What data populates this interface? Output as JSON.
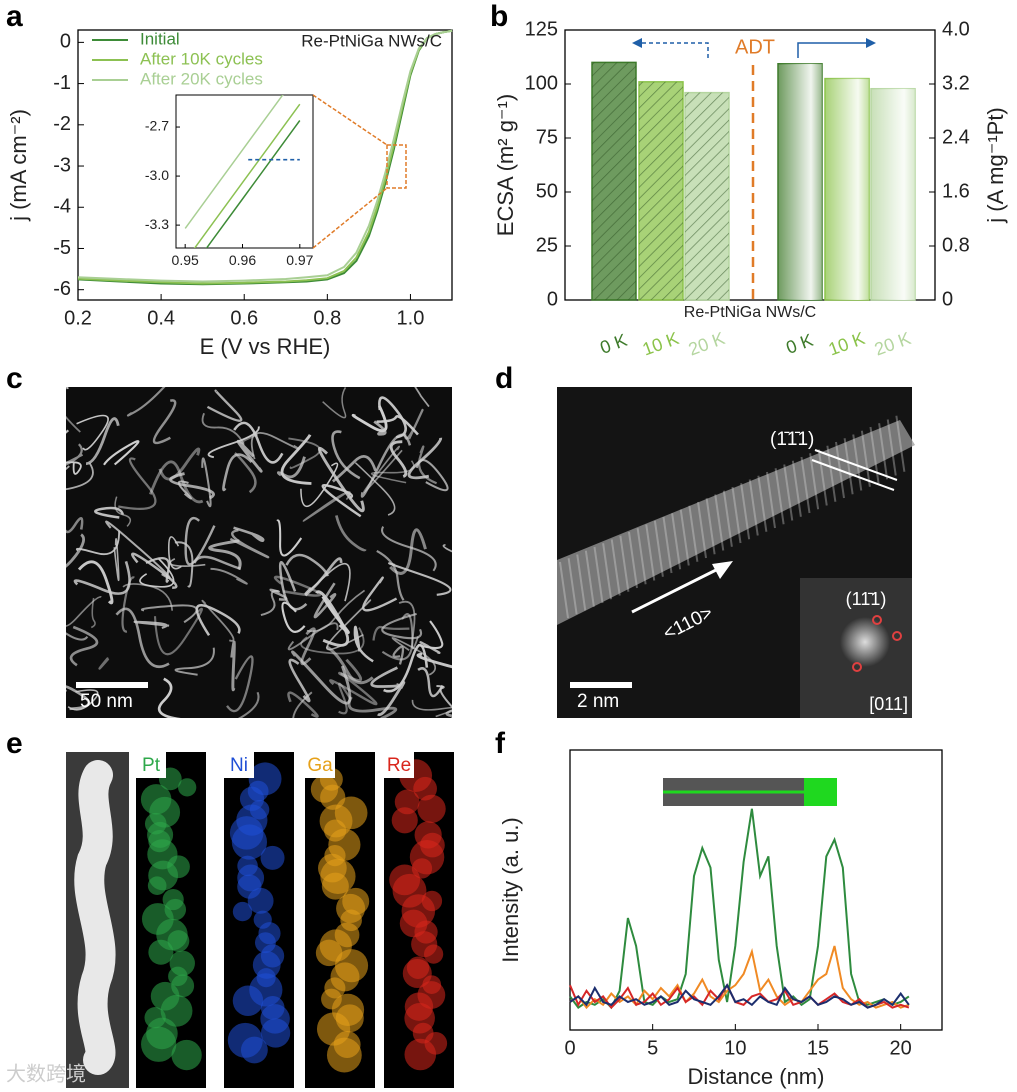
{
  "panel_labels": [
    "a",
    "b",
    "c",
    "d",
    "e",
    "f"
  ],
  "chart_data": [
    {
      "type": "line",
      "annotation": "Re-PtNiGa NWs/C",
      "xlabel": "E (V vs RHE)",
      "ylabel": "j (mA cm⁻²)",
      "xlim": [
        0.2,
        1.1
      ],
      "ylim": [
        -6.25,
        0.3
      ],
      "xticks": [
        0.2,
        0.4,
        0.6,
        0.8,
        {
          "value": 1.0,
          "label": "1.0"
        }
      ],
      "yticks": [
        0,
        -1,
        -2,
        -3,
        -4,
        -5,
        -6
      ],
      "legend": "upper left",
      "x": [
        0.2,
        0.3,
        0.4,
        0.5,
        0.6,
        0.7,
        0.75,
        0.8,
        0.84,
        0.87,
        0.9,
        0.92,
        0.94,
        0.96,
        0.98,
        1.0,
        1.02,
        1.04,
        1.06,
        1.08,
        1.1
      ],
      "series": [
        {
          "name": "Initial",
          "color": "#3d8b37",
          "values": [
            -5.75,
            -5.8,
            -5.85,
            -5.87,
            -5.85,
            -5.82,
            -5.8,
            -5.75,
            -5.6,
            -5.3,
            -4.7,
            -4.1,
            -3.4,
            -2.6,
            -1.7,
            -0.8,
            -0.2,
            0.1,
            0.2,
            0.25,
            0.28
          ]
        },
        {
          "name": "After 10K cycles",
          "color": "#8cc152",
          "values": [
            -5.73,
            -5.78,
            -5.82,
            -5.85,
            -5.83,
            -5.8,
            -5.77,
            -5.72,
            -5.55,
            -5.22,
            -4.6,
            -4.0,
            -3.3,
            -2.5,
            -1.6,
            -0.75,
            -0.18,
            0.1,
            0.2,
            0.25,
            0.28
          ]
        },
        {
          "name": "After 20K cycles",
          "color": "#a9cf94",
          "values": [
            -5.7,
            -5.74,
            -5.78,
            -5.8,
            -5.78,
            -5.74,
            -5.7,
            -5.65,
            -5.45,
            -5.1,
            -4.45,
            -3.85,
            -3.15,
            -2.35,
            -1.5,
            -0.7,
            -0.15,
            0.1,
            0.2,
            0.25,
            0.28
          ]
        }
      ],
      "inset": {
        "xlim": [
          0.9484,
          0.9723
        ],
        "ylim": [
          -3.44,
          -2.504
        ],
        "xticks": [
          0.95,
          0.96,
          0.97
        ],
        "yticks": [
          -2.7,
          {
            "value": -3.0,
            "label": "-3.0"
          },
          -3.3
        ],
        "x": [
          0.95,
          0.955,
          0.96,
          0.965,
          0.97
        ],
        "series": [
          {
            "color": "#3d8b37",
            "values": [
              -3.62,
              -3.38,
              -3.14,
              -2.9,
              -2.66
            ]
          },
          {
            "color": "#8cc152",
            "values": [
              -3.52,
              -3.28,
              -3.04,
              -2.8,
              -2.56
            ]
          },
          {
            "color": "#a9cf94",
            "values": [
              -3.32,
              -3.08,
              -2.84,
              -2.6,
              -2.36
            ]
          }
        ],
        "reference": {
          "x": [
            0.961,
            0.97
          ],
          "y": -2.9,
          "color": "#1f5fa8"
        }
      }
    },
    {
      "type": "bar",
      "annotation": "Re-PtNiGa NWs/C",
      "divider_label": "ADT",
      "ylabel": "ECSA (m² g⁻¹)",
      "y2label": "j (A mg⁻¹Pt)",
      "categories": [
        "0 K",
        "10 K",
        "20 K",
        "0 K",
        "10 K",
        "20 K"
      ],
      "category_colors": [
        "#3d7a2a",
        "#8bc34a",
        "#b5d6a0",
        "#3d7a2a",
        "#8bc34a",
        "#b5d6a0"
      ],
      "ylim": [
        0,
        125
      ],
      "yticks": [
        0,
        25,
        50,
        75,
        100,
        125
      ],
      "y2lim": [
        0,
        4.0
      ],
      "y2ticks": [
        0,
        0.8,
        1.6,
        2.4,
        3.2,
        {
          "value": 4.0,
          "label": "4.0"
        }
      ],
      "series": [
        {
          "values": [
            110,
            101,
            96,
            null,
            null,
            null
          ]
        },
        {
          "axis": "y2",
          "values": [
            null,
            null,
            null,
            3.5,
            3.28,
            3.13
          ]
        }
      ]
    },
    {
      "type": "line",
      "xlabel": "Distance (nm)",
      "ylabel": "Intensity (a. u.)",
      "xlim": [
        0,
        22.5
      ],
      "ylim": [
        0,
        100
      ],
      "xticks": [
        0,
        5,
        10,
        15,
        20
      ],
      "x": [
        0,
        0.5,
        1,
        1.5,
        2,
        2.5,
        3,
        3.5,
        4,
        4.5,
        5,
        5.5,
        6,
        6.5,
        7,
        7.5,
        8,
        8.5,
        9,
        9.5,
        10,
        10.5,
        11,
        11.5,
        12,
        12.5,
        13,
        13.5,
        14,
        14.5,
        15,
        15.5,
        16,
        16.5,
        17,
        17.5,
        18,
        18.5,
        19,
        19.5,
        20,
        20.5
      ],
      "series": [
        {
          "color": "#2e8b3e",
          "values": [
            12,
            8,
            10,
            9,
            11,
            8,
            14,
            40,
            30,
            10,
            9,
            12,
            10,
            11,
            20,
            55,
            65,
            58,
            25,
            10,
            30,
            60,
            79,
            55,
            62,
            30,
            10,
            12,
            9,
            11,
            30,
            62,
            68,
            58,
            20,
            10,
            9,
            10,
            11,
            9,
            10,
            12
          ]
        },
        {
          "color": "#f08a24",
          "values": [
            10,
            12,
            8,
            11,
            9,
            13,
            10,
            12,
            9,
            14,
            11,
            15,
            12,
            16,
            10,
            13,
            18,
            12,
            10,
            14,
            16,
            20,
            28,
            14,
            18,
            12,
            9,
            11,
            10,
            14,
            18,
            20,
            30,
            15,
            11,
            9,
            10,
            8,
            9,
            10,
            8,
            9
          ]
        },
        {
          "color": "#d62728",
          "values": [
            16,
            9,
            14,
            10,
            12,
            8,
            11,
            15,
            9,
            10,
            13,
            9,
            11,
            15,
            10,
            12,
            9,
            14,
            11,
            16,
            10,
            9,
            12,
            13,
            10,
            11,
            14,
            9,
            10,
            12,
            9,
            11,
            13,
            10,
            9,
            11,
            8,
            9,
            10,
            8,
            9,
            8
          ]
        },
        {
          "color": "#1c2e6e",
          "values": [
            10,
            12,
            9,
            15,
            10,
            9,
            12,
            10,
            11,
            9,
            10,
            12,
            9,
            10,
            14,
            11,
            10,
            9,
            12,
            16,
            10,
            11,
            9,
            12,
            10,
            9,
            15,
            11,
            10,
            12,
            9,
            10,
            12,
            11,
            9,
            10,
            8,
            9,
            11,
            9,
            13,
            9
          ]
        }
      ]
    }
  ],
  "images": {
    "c": {
      "scale_bar": "50 nm"
    },
    "d": {
      "scale_bar": "2 nm",
      "direction": "<110>",
      "plane": "(1̄1̄1)",
      "fft_spot": "(11̄1)",
      "zone_axis": "[011]"
    },
    "e": {
      "channels": [
        {
          "label": "Pt",
          "color": "#2ea84a"
        },
        {
          "label": "Ni",
          "color": "#1f4fd6"
        },
        {
          "label": "Ga",
          "color": "#e6a11a"
        },
        {
          "label": "Re",
          "color": "#d9261c"
        }
      ]
    }
  },
  "watermark": "大数跨境"
}
